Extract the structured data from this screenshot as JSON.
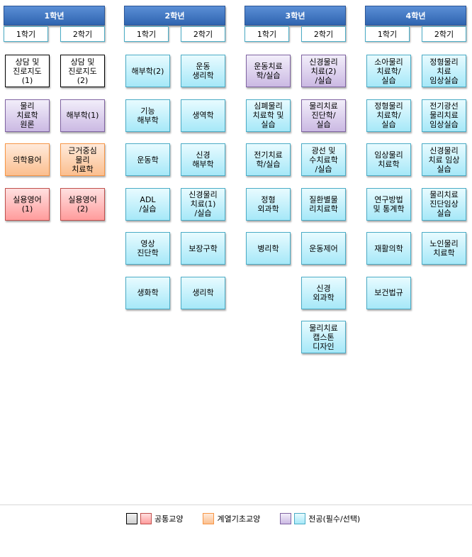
{
  "colors": {
    "header": "#2f64b0",
    "basic": "#000000",
    "common": "#c0504d",
    "foundation": "#f79646",
    "required": "#8064a2",
    "major": "#4bacc6"
  },
  "years": [
    {
      "label": "1학년",
      "semesters": [
        {
          "label": "1학기",
          "courses": [
            {
              "name": "상담 및\n진로지도\n(1)",
              "type": "basic"
            },
            {
              "name": "물리\n치료학\n원론",
              "type": "req"
            },
            {
              "name": "의학용어",
              "type": "found"
            },
            {
              "name": "실용영어\n(1)",
              "type": "common"
            }
          ]
        },
        {
          "label": "2학기",
          "courses": [
            {
              "name": "상담 및\n진로지도\n(2)",
              "type": "basic"
            },
            {
              "name": "해부학(1)",
              "type": "req"
            },
            {
              "name": "근거중심\n물리\n치료학",
              "type": "found"
            },
            {
              "name": "실용영어\n(2)",
              "type": "common"
            }
          ]
        }
      ]
    },
    {
      "label": "2학년",
      "semesters": [
        {
          "label": "1학기",
          "courses": [
            {
              "name": "해부학(2)",
              "type": "major"
            },
            {
              "name": "기능\n해부학",
              "type": "major"
            },
            {
              "name": "운동학",
              "type": "major"
            },
            {
              "name": "ADL\n/실습",
              "type": "major"
            },
            {
              "name": "영상\n진단학",
              "type": "major"
            },
            {
              "name": "생화학",
              "type": "major"
            }
          ]
        },
        {
          "label": "2학기",
          "courses": [
            {
              "name": "운동\n생리학",
              "type": "major"
            },
            {
              "name": "생역학",
              "type": "major"
            },
            {
              "name": "신경\n해부학",
              "type": "major"
            },
            {
              "name": "신경물리\n치료(1)\n/실습",
              "type": "major"
            },
            {
              "name": "보장구학",
              "type": "major"
            },
            {
              "name": "생리학",
              "type": "major"
            }
          ]
        }
      ]
    },
    {
      "label": "3학년",
      "semesters": [
        {
          "label": "1학기",
          "courses": [
            {
              "name": "운동치료\n학/실습",
              "type": "req"
            },
            {
              "name": "심폐물리\n치료학 및\n실습",
              "type": "major"
            },
            {
              "name": "전기치료\n학/실습",
              "type": "major"
            },
            {
              "name": "정형\n외과학",
              "type": "major"
            },
            {
              "name": "병리학",
              "type": "major"
            }
          ]
        },
        {
          "label": "2학기",
          "courses": [
            {
              "name": "신경물리\n치료(2)\n/실습",
              "type": "req"
            },
            {
              "name": "물리치료\n진단학/\n실습",
              "type": "req"
            },
            {
              "name": "광선 및\n수치료학\n/실습",
              "type": "major"
            },
            {
              "name": "질환별물\n리치료학",
              "type": "major"
            },
            {
              "name": "운동제어",
              "type": "major"
            },
            {
              "name": "신경\n외과학",
              "type": "major"
            },
            {
              "name": "물리치료\n캡스톤\n디자인",
              "type": "major"
            }
          ]
        }
      ]
    },
    {
      "label": "4학년",
      "semesters": [
        {
          "label": "1학기",
          "courses": [
            {
              "name": "소아물리\n치료학/\n실습",
              "type": "major"
            },
            {
              "name": "정형물리\n치료학/\n실습",
              "type": "major"
            },
            {
              "name": "임상물리\n치료학",
              "type": "major"
            },
            {
              "name": "연구방법\n및 통계학",
              "type": "major"
            },
            {
              "name": "재활의학",
              "type": "major"
            },
            {
              "name": "보건법규",
              "type": "major"
            }
          ]
        },
        {
          "label": "2학기",
          "courses": [
            {
              "name": "정형물리\n치료\n임상실습",
              "type": "major"
            },
            {
              "name": "전기광선\n물리치료\n임상실습",
              "type": "major"
            },
            {
              "name": "신경물리\n치료 임상\n실습",
              "type": "major"
            },
            {
              "name": "물리치료\n진단임상\n실습",
              "type": "major"
            },
            {
              "name": "노인물리\n치료학",
              "type": "major"
            }
          ]
        }
      ]
    }
  ],
  "legend": {
    "common": "공통교양",
    "foundation": "계열기초교양",
    "major": "전공(필수/선택)"
  }
}
